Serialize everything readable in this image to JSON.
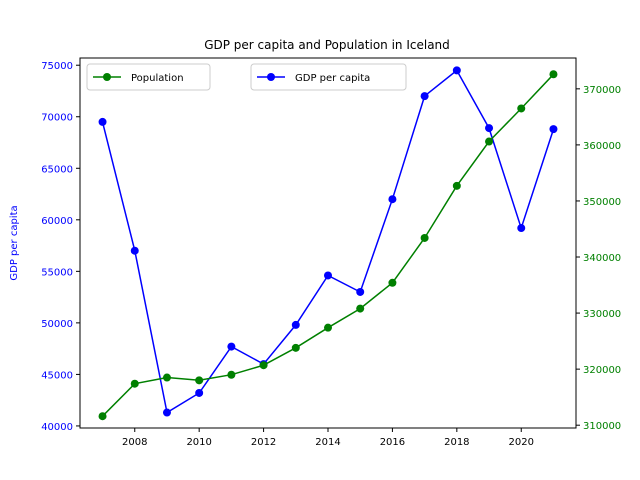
{
  "chart_data": {
    "type": "line",
    "title": "GDP per capita and Population in Iceland",
    "xlabel": "",
    "x": [
      2007,
      2008,
      2009,
      2010,
      2011,
      2012,
      2013,
      2014,
      2015,
      2016,
      2017,
      2018,
      2019,
      2020,
      2021
    ],
    "xlim": [
      2006.3,
      2021.7
    ],
    "xticks": [
      2008,
      2010,
      2012,
      2014,
      2016,
      2018,
      2020
    ],
    "grid": false,
    "axes": {
      "left": {
        "label": "GDP per capita",
        "color": "#0000ff",
        "ylim": [
          39800,
          75700
        ],
        "ticks": [
          40000,
          45000,
          50000,
          55000,
          60000,
          65000,
          70000,
          75000
        ]
      },
      "right": {
        "label": "",
        "color": "#008000",
        "ylim": [
          309500,
          375500
        ],
        "ticks": [
          310000,
          320000,
          330000,
          340000,
          350000,
          360000,
          370000
        ]
      }
    },
    "series": [
      {
        "name": "GDP per capita",
        "axis": "left",
        "color": "#0000ff",
        "marker": "circle",
        "values": [
          69500,
          57000,
          41300,
          43200,
          47700,
          46000,
          49800,
          54600,
          53000,
          62000,
          72000,
          74500,
          68900,
          59200,
          68800
        ]
      },
      {
        "name": "Population",
        "axis": "right",
        "color": "#008000",
        "marker": "circle",
        "values": [
          311600,
          317400,
          318500,
          318000,
          319000,
          320700,
          323800,
          327400,
          330800,
          335400,
          343400,
          352700,
          360600,
          366500,
          372600
        ]
      }
    ],
    "legends": [
      {
        "position": "upper-left",
        "series": "Population"
      },
      {
        "position": "upper-center",
        "series": "GDP per capita"
      }
    ]
  }
}
